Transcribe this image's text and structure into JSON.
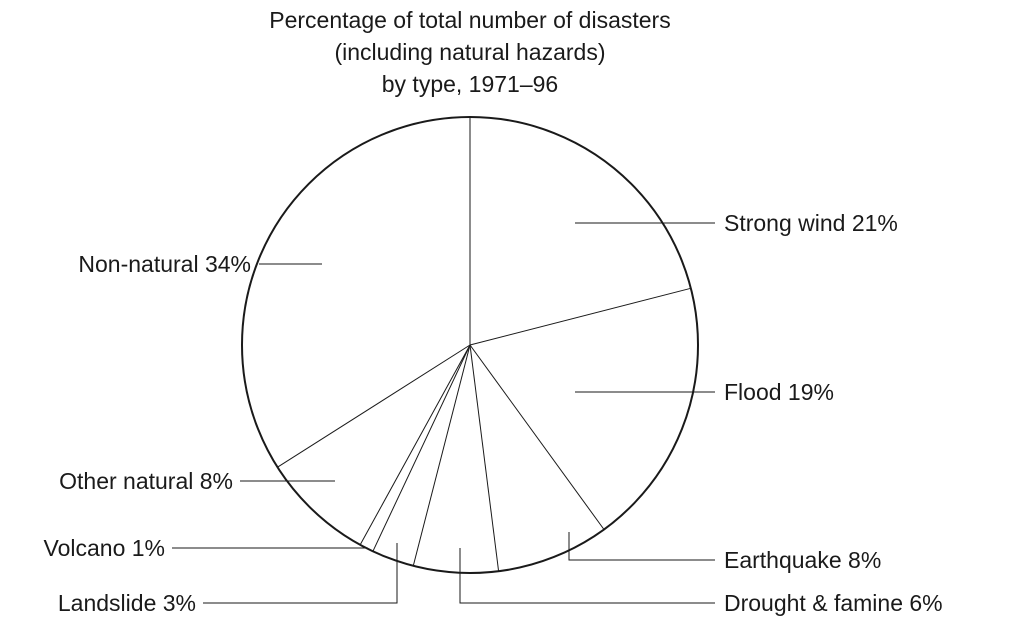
{
  "chart_data": {
    "type": "pie",
    "title": [
      "Percentage of total number of disasters",
      "(including natural hazards)",
      "by type, 1971–96"
    ],
    "start_angle_deg": 0,
    "direction": "clockwise",
    "slices": [
      {
        "label": "Strong wind 21%",
        "category": "Strong wind",
        "value": 21
      },
      {
        "label": "Flood 19%",
        "category": "Flood",
        "value": 19
      },
      {
        "label": "Earthquake 8%",
        "category": "Earthquake",
        "value": 8
      },
      {
        "label": "Drought & famine 6%",
        "category": "Drought & famine",
        "value": 6
      },
      {
        "label": "Landslide 3%",
        "category": "Landslide",
        "value": 3
      },
      {
        "label": "Volcano 1%",
        "category": "Volcano",
        "value": 1
      },
      {
        "label": "Other natural 8%",
        "category": "Other natural",
        "value": 8
      },
      {
        "label": "Non-natural 34%",
        "category": "Non-natural",
        "value": 34
      }
    ],
    "colors": {
      "fill": "#ffffff",
      "line": "#1a1a1a"
    }
  }
}
